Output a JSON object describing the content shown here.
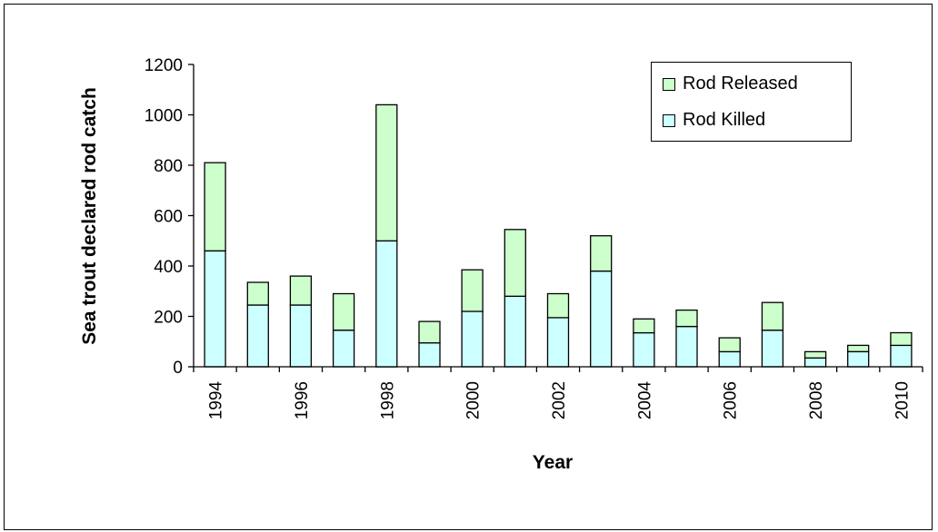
{
  "chart_data": {
    "type": "bar",
    "stacked": true,
    "xlabel": "Year",
    "ylabel": "Sea trout declared rod catch",
    "ylim": [
      0,
      1200
    ],
    "yticks": [
      0,
      200,
      400,
      600,
      800,
      1000,
      1200
    ],
    "categories": [
      "1994",
      "1995",
      "1996",
      "1997",
      "1998",
      "1999",
      "2000",
      "2001",
      "2002",
      "2003",
      "2004",
      "2005",
      "2006",
      "2007",
      "2008",
      "2009",
      "2010"
    ],
    "xtick_labels": [
      "1994",
      "",
      "1996",
      "",
      "1998",
      "",
      "2000",
      "",
      "2002",
      "",
      "2004",
      "",
      "2006",
      "",
      "2008",
      "",
      "2010"
    ],
    "grid": false,
    "legend_position": "top-right",
    "series": [
      {
        "name": "Rod Killed",
        "color": "#ccffff",
        "values": [
          460,
          245,
          245,
          145,
          500,
          95,
          220,
          280,
          195,
          380,
          135,
          160,
          60,
          145,
          35,
          60,
          85
        ]
      },
      {
        "name": "Rod Released",
        "color": "#ccffcc",
        "values": [
          350,
          90,
          115,
          145,
          540,
          85,
          165,
          265,
          95,
          140,
          55,
          65,
          55,
          110,
          25,
          25,
          50
        ]
      }
    ],
    "legend": [
      {
        "name": "Rod Released",
        "color": "#ccffcc"
      },
      {
        "name": "Rod Killed",
        "color": "#ccffff"
      }
    ]
  }
}
